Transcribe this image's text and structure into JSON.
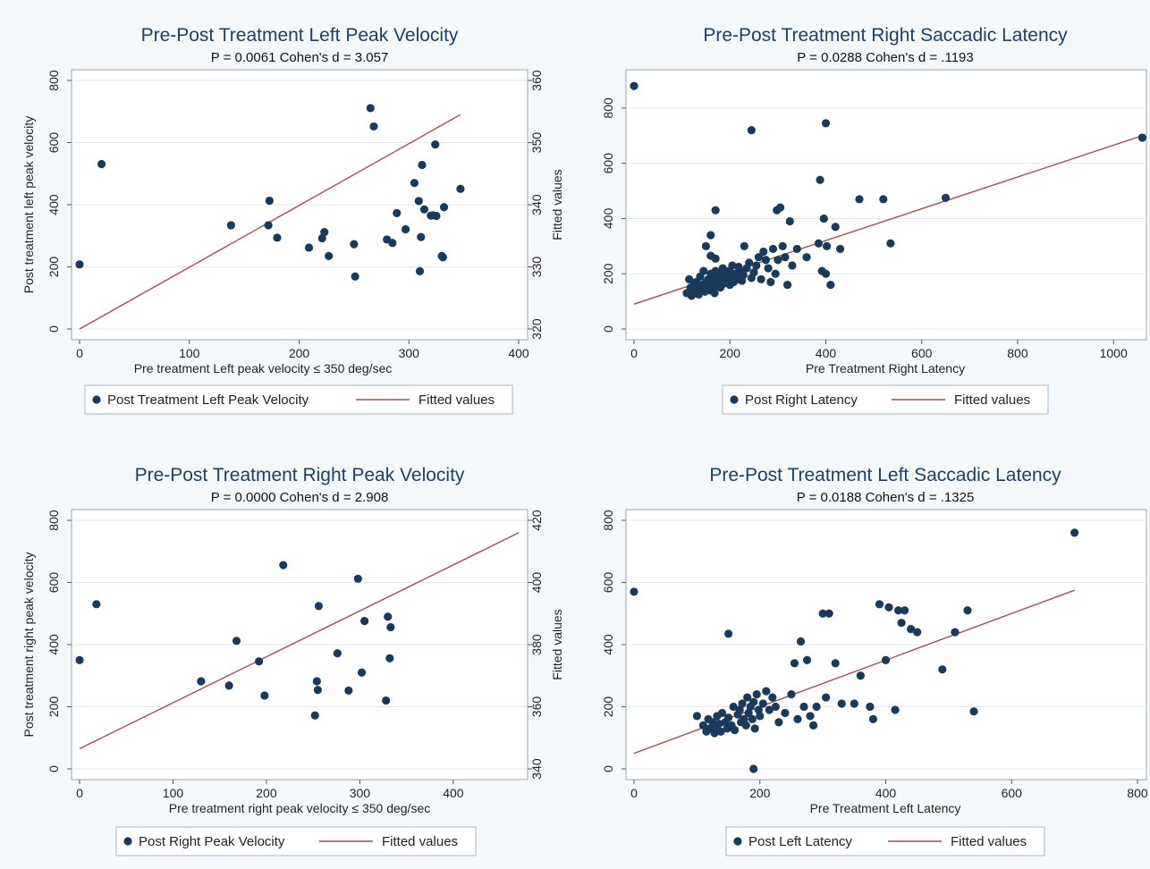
{
  "colors": {
    "page_bg": "#f5f8fa",
    "plot_bg": "#ffffff",
    "title": "#1e3f66",
    "marker": "#1a3a5c",
    "fit_line": "#a0504f",
    "grid": "#e2e8ee"
  },
  "chart_data": [
    {
      "type": "scatter",
      "title": "Pre-Post Treatment Left Peak Velocity",
      "subtitle": "P = 0.0061 Cohen's d = 3.057",
      "xlabel": "Pre treatment Left peak velocity ≤ 350 deg/sec",
      "ylabel": "Post treatment left peak velocity",
      "y2label": "Fitted values",
      "xlim": [
        0,
        400
      ],
      "ylim": [
        0,
        800
      ],
      "y2lim": [
        320,
        360
      ],
      "xticks": [
        0,
        100,
        200,
        300,
        400
      ],
      "yticks": [
        0,
        200,
        400,
        600,
        800
      ],
      "y2ticks": [
        320,
        330,
        340,
        350,
        360
      ],
      "series": [
        {
          "name": "Post Treatment Left Peak Velocity",
          "kind": "scatter",
          "x": [
            0,
            20,
            138,
            172,
            173,
            180,
            209,
            221,
            223,
            227,
            250,
            251,
            265,
            268,
            280,
            285,
            289,
            297,
            305,
            309,
            310,
            311,
            312,
            314,
            320,
            322,
            324,
            325,
            330,
            331,
            332,
            347
          ],
          "y": [
            208,
            531,
            334,
            334,
            413,
            294,
            262,
            292,
            312,
            235,
            273,
            169,
            711,
            652,
            288,
            277,
            373,
            321,
            470,
            412,
            186,
            296,
            528,
            385,
            365,
            366,
            594,
            364,
            235,
            231,
            392,
            451
          ]
        },
        {
          "name": "Fitted values",
          "kind": "line",
          "axis": "y2",
          "x": [
            0,
            347
          ],
          "y": [
            320,
            354.5
          ]
        }
      ],
      "legend": "bottom"
    },
    {
      "type": "scatter",
      "title": "Pre-Post Treatment Right Saccadic Latency",
      "subtitle": "P = 0.0288 Cohen's d = .1193",
      "xlabel": "Pre Treatment Right Latency",
      "ylabel": "",
      "xlim": [
        0,
        1050
      ],
      "ylim": [
        0,
        900
      ],
      "xticks": [
        0,
        200,
        400,
        600,
        800,
        1000
      ],
      "yticks": [
        0,
        200,
        400,
        600,
        800
      ],
      "series": [
        {
          "name": "Post Right Latency",
          "kind": "scatter",
          "x": [
            0,
            110,
            115,
            118,
            120,
            122,
            125,
            128,
            130,
            132,
            135,
            138,
            140,
            142,
            145,
            148,
            150,
            150,
            152,
            155,
            158,
            160,
            160,
            162,
            165,
            165,
            168,
            170,
            170,
            172,
            175,
            178,
            180,
            182,
            185,
            188,
            190,
            192,
            195,
            198,
            200,
            202,
            205,
            208,
            210,
            212,
            215,
            218,
            220,
            225,
            228,
            230,
            235,
            240,
            245,
            250,
            255,
            260,
            265,
            270,
            275,
            280,
            285,
            290,
            295,
            298,
            300,
            305,
            310,
            315,
            320,
            325,
            330,
            340,
            360,
            385,
            388,
            392,
            396,
            400,
            402,
            410,
            420,
            430,
            470,
            520,
            535,
            650,
            1060,
            245,
            400,
            160,
            170
          ],
          "y": [
            880,
            130,
            180,
            150,
            120,
            140,
            160,
            130,
            170,
            150,
            125,
            190,
            145,
            160,
            210,
            135,
            170,
            300,
            155,
            180,
            140,
            200,
            340,
            165,
            150,
            190,
            130,
            210,
            430,
            175,
            160,
            195,
            150,
            180,
            220,
            165,
            200,
            175,
            190,
            210,
            160,
            185,
            230,
            170,
            200,
            190,
            180,
            225,
            210,
            175,
            195,
            300,
            220,
            240,
            185,
            205,
            230,
            260,
            180,
            280,
            250,
            220,
            170,
            290,
            200,
            430,
            250,
            440,
            300,
            260,
            160,
            390,
            230,
            290,
            260,
            310,
            540,
            210,
            400,
            200,
            300,
            160,
            370,
            290,
            470,
            470,
            310,
            475,
            693,
            720,
            745,
            265,
            255
          ]
        },
        {
          "name": "Fitted values",
          "kind": "line",
          "x": [
            0,
            1060
          ],
          "y": [
            90,
            700
          ]
        }
      ],
      "legend": "bottom"
    },
    {
      "type": "scatter",
      "title": "Pre-Post Treatment Right Peak Velocity",
      "subtitle": "P = 0.0000 Cohen's d = 2.908",
      "xlabel": "Pre treatment right peak velocity ≤ 350 deg/sec",
      "ylabel": "Post treatment right peak velocity",
      "y2label": "Fitted values",
      "xlim": [
        0,
        470
      ],
      "ylim": [
        0,
        800
      ],
      "y2lim": [
        340,
        420
      ],
      "xticks": [
        0,
        100,
        200,
        300,
        400
      ],
      "yticks": [
        0,
        200,
        400,
        600,
        800
      ],
      "y2ticks": [
        340,
        360,
        380,
        400,
        420
      ],
      "series": [
        {
          "name": "Post Right Peak Velocity",
          "kind": "scatter",
          "x": [
            0,
            18,
            130,
            160,
            168,
            192,
            198,
            218,
            252,
            254,
            255,
            256,
            276,
            288,
            298,
            302,
            305,
            328,
            330,
            332,
            333
          ],
          "y": [
            350,
            530,
            282,
            268,
            412,
            346,
            236,
            656,
            172,
            282,
            254,
            524,
            372,
            252,
            612,
            310,
            476,
            220,
            490,
            356,
            456
          ]
        },
        {
          "name": "Fitted values",
          "kind": "line",
          "axis": "y2",
          "x": [
            0,
            470
          ],
          "y": [
            346.5,
            416
          ]
        }
      ],
      "legend": "bottom"
    },
    {
      "type": "scatter",
      "title": "Pre-Post Treatment Left Saccadic Latency",
      "subtitle": "P = 0.0188 Cohen's d = .1325",
      "xlabel": "Pre Treatment Left Latency",
      "ylabel": "",
      "xlim": [
        0,
        800
      ],
      "ylim": [
        0,
        800
      ],
      "xticks": [
        0,
        200,
        400,
        600,
        800
      ],
      "yticks": [
        0,
        200,
        400,
        600,
        800
      ],
      "series": [
        {
          "name": "Post Left Latency",
          "kind": "scatter",
          "x": [
            0,
            100,
            110,
            115,
            118,
            120,
            125,
            128,
            130,
            132,
            135,
            138,
            140,
            145,
            148,
            150,
            150,
            155,
            158,
            160,
            165,
            168,
            170,
            172,
            175,
            178,
            180,
            182,
            185,
            188,
            190,
            192,
            195,
            198,
            200,
            205,
            210,
            215,
            220,
            225,
            230,
            240,
            250,
            255,
            260,
            265,
            270,
            275,
            280,
            285,
            290,
            300,
            305,
            310,
            320,
            330,
            350,
            360,
            375,
            380,
            390,
            400,
            405,
            415,
            420,
            425,
            430,
            440,
            450,
            490,
            510,
            530,
            540,
            700,
            190
          ],
          "y": [
            570,
            170,
            140,
            120,
            160,
            130,
            150,
            115,
            135,
            170,
            145,
            120,
            180,
            150,
            130,
            165,
            435,
            140,
            200,
            125,
            175,
            190,
            150,
            210,
            160,
            140,
            230,
            180,
            200,
            160,
            215,
            130,
            240,
            190,
            170,
            210,
            250,
            190,
            230,
            200,
            150,
            180,
            240,
            340,
            160,
            410,
            200,
            350,
            170,
            140,
            200,
            500,
            230,
            500,
            340,
            210,
            210,
            300,
            200,
            160,
            530,
            350,
            520,
            190,
            510,
            470,
            510,
            450,
            440,
            320,
            440,
            510,
            185,
            760,
            0
          ],
          "extra_pts": []
        },
        {
          "name": "Fitted values",
          "kind": "line",
          "x": [
            0,
            700
          ],
          "y": [
            50,
            575
          ]
        }
      ],
      "legend": "bottom"
    }
  ]
}
